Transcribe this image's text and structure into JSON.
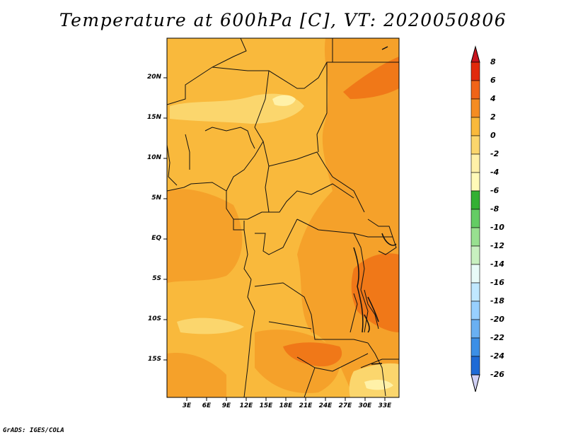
{
  "title": "Temperature at 600hPa [C], VT: 2020050806",
  "credit": "GrADS: IGES/COLA",
  "map": {
    "lat_labels": [
      "20N",
      "15N",
      "10N",
      "5N",
      "EQ",
      "5S",
      "10S",
      "15S"
    ],
    "lon_labels": [
      "3E",
      "6E",
      "9E",
      "12E",
      "15E",
      "18E",
      "21E",
      "24E",
      "27E",
      "30E",
      "33E"
    ],
    "colors": {
      "base": "#f9b93c",
      "warm": "#f5a12a",
      "hot": "#f07818",
      "cool": "#fbd66d",
      "cold": "#fff1a8"
    }
  },
  "colorbar": {
    "labels": [
      "8",
      "6",
      "4",
      "2",
      "0",
      "-2",
      "-4",
      "-6",
      "-8",
      "-10",
      "-12",
      "-14",
      "-16",
      "-18",
      "-20",
      "-22",
      "-24",
      "-26"
    ],
    "colors": [
      "#e12a0c",
      "#f06418",
      "#f58c22",
      "#f9b93c",
      "#fbd66d",
      "#fff1a8",
      "#fffab8",
      "#33b033",
      "#64cc64",
      "#98e090",
      "#c8f0c0",
      "#e8fbf8",
      "#c0e8ff",
      "#98d0ff",
      "#6ab0f2",
      "#3c8fe6",
      "#1e6ad6",
      "#0c46b4",
      "#0a1e88"
    ],
    "top_arrow_color": "#c8141e",
    "bottom_arrow_color": "#d0d0f4"
  }
}
